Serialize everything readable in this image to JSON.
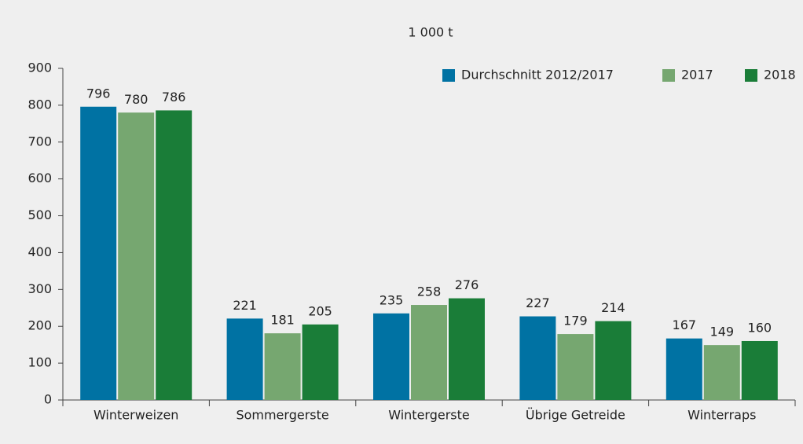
{
  "chart_data": {
    "type": "bar",
    "title": "1 000 t",
    "categories": [
      "Winterweizen",
      "Sommergerste",
      "Wintergerste",
      "Übrige Getreide",
      "Winterraps"
    ],
    "series": [
      {
        "name": "Durchschnitt 2012/2017",
        "color": "#0072a3",
        "values": [
          796,
          221,
          235,
          227,
          167
        ]
      },
      {
        "name": "2017",
        "color": "#76a770",
        "values": [
          780,
          181,
          258,
          179,
          149
        ]
      },
      {
        "name": "2018",
        "color": "#1a7d38",
        "values": [
          786,
          205,
          276,
          214,
          160
        ]
      }
    ],
    "ylim": [
      0,
      900
    ],
    "yticks": [
      0,
      100,
      200,
      300,
      400,
      500,
      600,
      700,
      800,
      900
    ],
    "grid": false,
    "legend": "top-right"
  }
}
